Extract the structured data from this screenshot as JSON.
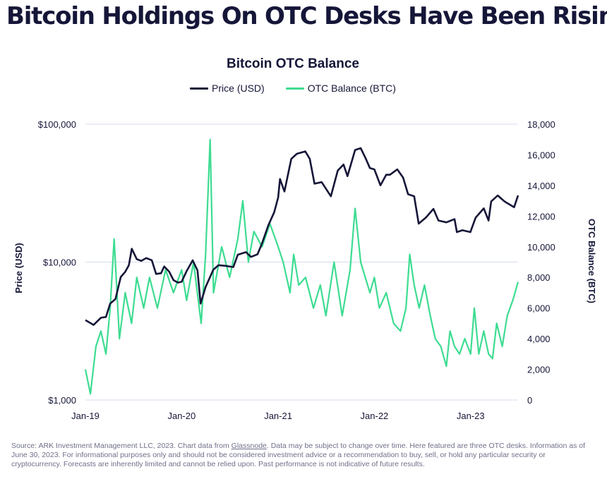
{
  "headline": "Bitcoin Holdings On OTC Desks Have Been Rising",
  "source": {
    "prefix": "Source: ARK Investment Management LLC, 2023. Chart data from ",
    "link": "Glassnode",
    "suffix": ". Data may be subject to change over time. Here featured are three OTC desks. Information as of June 30, 2023. For informational purposes only and should not be considered investment advice or a recommendation to buy, sell, or hold any particular security or cryptocurrency. Forecasts are inherently limited and cannot be relied upon. Past performance is not indicative of future results."
  },
  "colors": {
    "price": "#151638",
    "otc": "#3ddc91",
    "grid": "#d8dcef"
  },
  "chart_data": {
    "type": "line",
    "title": "Bitcoin OTC Balance",
    "legend_position": "top-center",
    "grid": true,
    "x_range": [
      "2019-01-01",
      "2023-06-30"
    ],
    "x_ticks": [
      {
        "date": "2019-01-01",
        "label": "Jan-19"
      },
      {
        "date": "2020-01-01",
        "label": "Jan-20"
      },
      {
        "date": "2021-01-01",
        "label": "Jan-21"
      },
      {
        "date": "2022-01-01",
        "label": "Jan-22"
      },
      {
        "date": "2023-01-01",
        "label": "Jan-23"
      }
    ],
    "y_left": {
      "label": "Price (USD)",
      "scale": "log",
      "range": [
        1000,
        100000
      ],
      "ticks": [
        {
          "value": 1000,
          "label": "$1,000"
        },
        {
          "value": 10000,
          "label": "$10,000"
        },
        {
          "value": 100000,
          "label": "$100,000"
        }
      ]
    },
    "y_right": {
      "label": "OTC Balance (BTC)",
      "scale": "linear",
      "range": [
        0,
        18000
      ],
      "ticks": [
        {
          "value": 0,
          "label": "0"
        },
        {
          "value": 2000,
          "label": "2,000"
        },
        {
          "value": 4000,
          "label": "4,000"
        },
        {
          "value": 6000,
          "label": "6,000"
        },
        {
          "value": 8000,
          "label": "8,000"
        },
        {
          "value": 10000,
          "label": "10,000"
        },
        {
          "value": 12000,
          "label": "12,000"
        },
        {
          "value": 14000,
          "label": "14,000"
        },
        {
          "value": 16000,
          "label": "16,000"
        },
        {
          "value": 18000,
          "label": "18,000"
        }
      ]
    },
    "series": [
      {
        "name": "Price (USD)",
        "axis": "left",
        "points": [
          [
            "2019-01-01",
            3800
          ],
          [
            "2019-02-01",
            3500
          ],
          [
            "2019-03-01",
            3950
          ],
          [
            "2019-03-20",
            4000
          ],
          [
            "2019-04-05",
            5000
          ],
          [
            "2019-04-25",
            5400
          ],
          [
            "2019-05-15",
            7800
          ],
          [
            "2019-06-01",
            8500
          ],
          [
            "2019-06-15",
            9500
          ],
          [
            "2019-06-26",
            12500
          ],
          [
            "2019-07-15",
            10500
          ],
          [
            "2019-08-01",
            10200
          ],
          [
            "2019-08-20",
            10700
          ],
          [
            "2019-09-10",
            10300
          ],
          [
            "2019-09-26",
            8200
          ],
          [
            "2019-10-15",
            8300
          ],
          [
            "2019-10-27",
            9300
          ],
          [
            "2019-11-15",
            8500
          ],
          [
            "2019-12-01",
            7400
          ],
          [
            "2019-12-18",
            7100
          ],
          [
            "2020-01-01",
            7200
          ],
          [
            "2020-01-20",
            8600
          ],
          [
            "2020-02-12",
            10300
          ],
          [
            "2020-03-01",
            8700
          ],
          [
            "2020-03-13",
            5000
          ],
          [
            "2020-04-01",
            6600
          ],
          [
            "2020-04-30",
            8800
          ],
          [
            "2020-05-20",
            9500
          ],
          [
            "2020-06-15",
            9400
          ],
          [
            "2020-07-15",
            9200
          ],
          [
            "2020-08-01",
            11300
          ],
          [
            "2020-09-01",
            11800
          ],
          [
            "2020-09-20",
            10900
          ],
          [
            "2020-10-15",
            11400
          ],
          [
            "2020-11-01",
            13700
          ],
          [
            "2020-11-25",
            18500
          ],
          [
            "2020-12-17",
            23000
          ],
          [
            "2021-01-01",
            29400
          ],
          [
            "2021-01-08",
            40000
          ],
          [
            "2021-01-25",
            32500
          ],
          [
            "2021-02-20",
            56000
          ],
          [
            "2021-03-13",
            61000
          ],
          [
            "2021-04-14",
            63500
          ],
          [
            "2021-05-01",
            56000
          ],
          [
            "2021-05-19",
            37000
          ],
          [
            "2021-06-15",
            38000
          ],
          [
            "2021-07-20",
            30000
          ],
          [
            "2021-08-15",
            46000
          ],
          [
            "2021-09-06",
            51000
          ],
          [
            "2021-09-21",
            42000
          ],
          [
            "2021-10-20",
            65000
          ],
          [
            "2021-11-10",
            67000
          ],
          [
            "2021-11-28",
            57000
          ],
          [
            "2021-12-15",
            48000
          ],
          [
            "2022-01-01",
            47000
          ],
          [
            "2022-01-24",
            36000
          ],
          [
            "2022-02-15",
            43000
          ],
          [
            "2022-03-01",
            43000
          ],
          [
            "2022-03-29",
            47000
          ],
          [
            "2022-04-20",
            41000
          ],
          [
            "2022-05-09",
            31000
          ],
          [
            "2022-06-01",
            30000
          ],
          [
            "2022-06-18",
            19000
          ],
          [
            "2022-07-15",
            21000
          ],
          [
            "2022-08-13",
            24300
          ],
          [
            "2022-09-01",
            20000
          ],
          [
            "2022-10-01",
            19400
          ],
          [
            "2022-11-01",
            20500
          ],
          [
            "2022-11-10",
            16500
          ],
          [
            "2022-12-01",
            17000
          ],
          [
            "2022-12-31",
            16500
          ],
          [
            "2023-01-20",
            21000
          ],
          [
            "2023-02-20",
            24500
          ],
          [
            "2023-03-10",
            20000
          ],
          [
            "2023-03-20",
            27500
          ],
          [
            "2023-04-14",
            30400
          ],
          [
            "2023-05-10",
            27500
          ],
          [
            "2023-06-15",
            25000
          ],
          [
            "2023-06-30",
            30400
          ]
        ]
      },
      {
        "name": "OTC Balance (BTC)",
        "axis": "right",
        "points": [
          [
            "2019-01-01",
            2000
          ],
          [
            "2019-01-20",
            400
          ],
          [
            "2019-02-10",
            3500
          ],
          [
            "2019-03-01",
            4500
          ],
          [
            "2019-03-20",
            3000
          ],
          [
            "2019-04-05",
            6000
          ],
          [
            "2019-04-20",
            10500
          ],
          [
            "2019-05-10",
            4000
          ],
          [
            "2019-06-01",
            7000
          ],
          [
            "2019-06-25",
            5000
          ],
          [
            "2019-07-15",
            8000
          ],
          [
            "2019-08-10",
            6000
          ],
          [
            "2019-09-01",
            8000
          ],
          [
            "2019-10-01",
            6000
          ],
          [
            "2019-11-01",
            8500
          ],
          [
            "2019-12-01",
            7000
          ],
          [
            "2020-01-01",
            8500
          ],
          [
            "2020-01-20",
            6500
          ],
          [
            "2020-02-15",
            9000
          ],
          [
            "2020-03-15",
            5000
          ],
          [
            "2020-04-01",
            9500
          ],
          [
            "2020-04-18",
            17000
          ],
          [
            "2020-05-01",
            7000
          ],
          [
            "2020-06-01",
            10000
          ],
          [
            "2020-07-01",
            8000
          ],
          [
            "2020-08-01",
            10500
          ],
          [
            "2020-08-20",
            13000
          ],
          [
            "2020-09-10",
            9000
          ],
          [
            "2020-10-01",
            11000
          ],
          [
            "2020-11-01",
            10000
          ],
          [
            "2020-12-01",
            11500
          ],
          [
            "2021-01-01",
            10000
          ],
          [
            "2021-01-20",
            9000
          ],
          [
            "2021-02-15",
            7000
          ],
          [
            "2021-03-01",
            9500
          ],
          [
            "2021-03-20",
            7500
          ],
          [
            "2021-04-15",
            8000
          ],
          [
            "2021-05-15",
            6000
          ],
          [
            "2021-06-10",
            7500
          ],
          [
            "2021-07-01",
            5500
          ],
          [
            "2021-08-01",
            9000
          ],
          [
            "2021-09-01",
            5500
          ],
          [
            "2021-10-01",
            8500
          ],
          [
            "2021-10-20",
            12500
          ],
          [
            "2021-11-10",
            9000
          ],
          [
            "2021-12-15",
            7000
          ],
          [
            "2022-01-01",
            8000
          ],
          [
            "2022-01-20",
            6000
          ],
          [
            "2022-02-15",
            7000
          ],
          [
            "2022-03-15",
            5000
          ],
          [
            "2022-04-10",
            4500
          ],
          [
            "2022-05-01",
            6000
          ],
          [
            "2022-05-15",
            9500
          ],
          [
            "2022-06-01",
            7500
          ],
          [
            "2022-06-20",
            6000
          ],
          [
            "2022-07-10",
            7500
          ],
          [
            "2022-08-01",
            5500
          ],
          [
            "2022-08-20",
            4000
          ],
          [
            "2022-09-10",
            3500
          ],
          [
            "2022-10-01",
            2200
          ],
          [
            "2022-10-15",
            4500
          ],
          [
            "2022-11-01",
            3500
          ],
          [
            "2022-11-20",
            3000
          ],
          [
            "2022-12-10",
            4000
          ],
          [
            "2023-01-01",
            3000
          ],
          [
            "2023-01-15",
            6000
          ],
          [
            "2023-02-01",
            3000
          ],
          [
            "2023-02-20",
            4500
          ],
          [
            "2023-03-10",
            3000
          ],
          [
            "2023-03-25",
            2700
          ],
          [
            "2023-04-10",
            5000
          ],
          [
            "2023-05-01",
            3500
          ],
          [
            "2023-05-20",
            5500
          ],
          [
            "2023-06-10",
            6500
          ],
          [
            "2023-06-30",
            7700
          ]
        ]
      }
    ]
  }
}
